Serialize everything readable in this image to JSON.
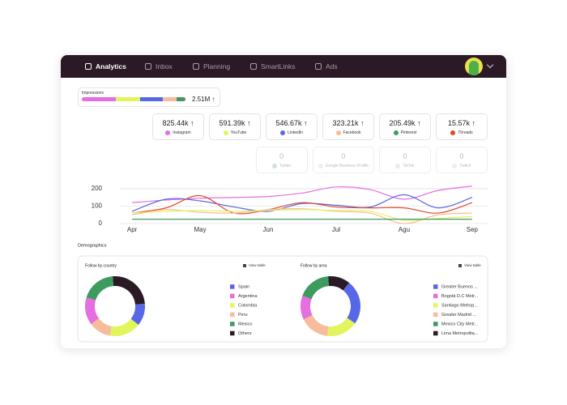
{
  "nav": {
    "items": [
      "Analytics",
      "Inbox",
      "Planning",
      "SmartLinks",
      "Ads"
    ],
    "active": 0
  },
  "impressions": {
    "label": "Impressions",
    "total": "2.51M ↑"
  },
  "stats": {
    "names": [
      "Instagram",
      "YouTube",
      "LinkedIn",
      "Facebook",
      "Pinterest",
      "Threads"
    ],
    "values": [
      825440,
      591390,
      546670,
      323210,
      205490,
      15570
    ],
    "value_labels": [
      "825.44k ↑",
      "591.39k ↑",
      "546.67k ↑",
      "323.21k ↑",
      "205.49k ↑",
      "15.57k ↑"
    ],
    "colors": [
      "#e56ee0",
      "#e3f55c",
      "#5668e6",
      "#f7bc9c",
      "#3d9b5f",
      "#e2492b"
    ]
  },
  "inactive_stats": {
    "names": [
      "Twitter",
      "Google Business Profile",
      "TikTok",
      "Twitch"
    ],
    "values": [
      0,
      0,
      0,
      0
    ],
    "colors": [
      "#cfe3da",
      "#eeeeee",
      "#e6eeea",
      "#eeeeee"
    ]
  },
  "demographics": {
    "title": "Demographics"
  },
  "chart_data": [
    {
      "type": "line",
      "x": [
        0,
        0.5,
        1,
        1.5,
        2,
        2.5,
        3,
        3.5,
        4,
        4.5,
        5
      ],
      "xlim": [
        -0.18,
        5.24
      ],
      "xticks": [
        {
          "value": 0,
          "label": "Apr"
        },
        {
          "value": 1,
          "label": "May"
        },
        {
          "value": 2,
          "label": "Jun"
        },
        {
          "value": 3,
          "label": "Jul"
        },
        {
          "value": 4,
          "label": "Agu"
        },
        {
          "value": 5,
          "label": "Sep"
        }
      ],
      "ylim": [
        -40,
        230
      ],
      "yticks": [
        0,
        100,
        200
      ],
      "grid": true,
      "series": [
        {
          "color": "#e56ee0",
          "values": [
            120,
            135,
            145,
            150,
            155,
            175,
            210,
            195,
            140,
            190,
            215
          ]
        },
        {
          "color": "#5668e6",
          "values": [
            70,
            140,
            130,
            95,
            70,
            115,
            105,
            95,
            165,
            90,
            150
          ]
        },
        {
          "color": "#e2492b",
          "values": [
            60,
            90,
            160,
            60,
            80,
            120,
            95,
            90,
            90,
            60,
            120
          ]
        },
        {
          "color": "#f7bc9c",
          "values": [
            50,
            80,
            65,
            60,
            80,
            85,
            70,
            60,
            0,
            50,
            60
          ]
        },
        {
          "color": "#e3f55c",
          "values": [
            60,
            70,
            75,
            70,
            75,
            80,
            75,
            70,
            20,
            30,
            40
          ]
        },
        {
          "color": "#3d9b5f",
          "values": [
            25,
            25,
            25,
            25,
            25,
            25,
            25,
            25,
            25,
            25,
            25
          ]
        }
      ]
    },
    {
      "type": "pie",
      "title": "Follow by country",
      "action": "View table",
      "labels": [
        "Spain",
        "Argentina",
        "Colombia",
        "Peru",
        "Mexico",
        "Others"
      ],
      "values": [
        12,
        15,
        17,
        12,
        19,
        25
      ],
      "colors": [
        "#5668e6",
        "#e56ee0",
        "#e3f55c",
        "#f7bc9c",
        "#3d9b5f",
        "#2a1a24"
      ]
    },
    {
      "type": "pie",
      "title": "Follow by area",
      "action": "View table",
      "labels": [
        "Greater Buenos ...",
        "Bogotá D.C Metr...",
        "Santiago Metrop...",
        "Greater Madrid ...",
        "Mexico City Metr...",
        "Lima Metropolita..."
      ],
      "values": [
        24,
        13,
        17,
        16,
        18,
        12
      ],
      "colors": [
        "#5668e6",
        "#e56ee0",
        "#e3f55c",
        "#f7bc9c",
        "#3d9b5f",
        "#2a1a24"
      ]
    }
  ]
}
